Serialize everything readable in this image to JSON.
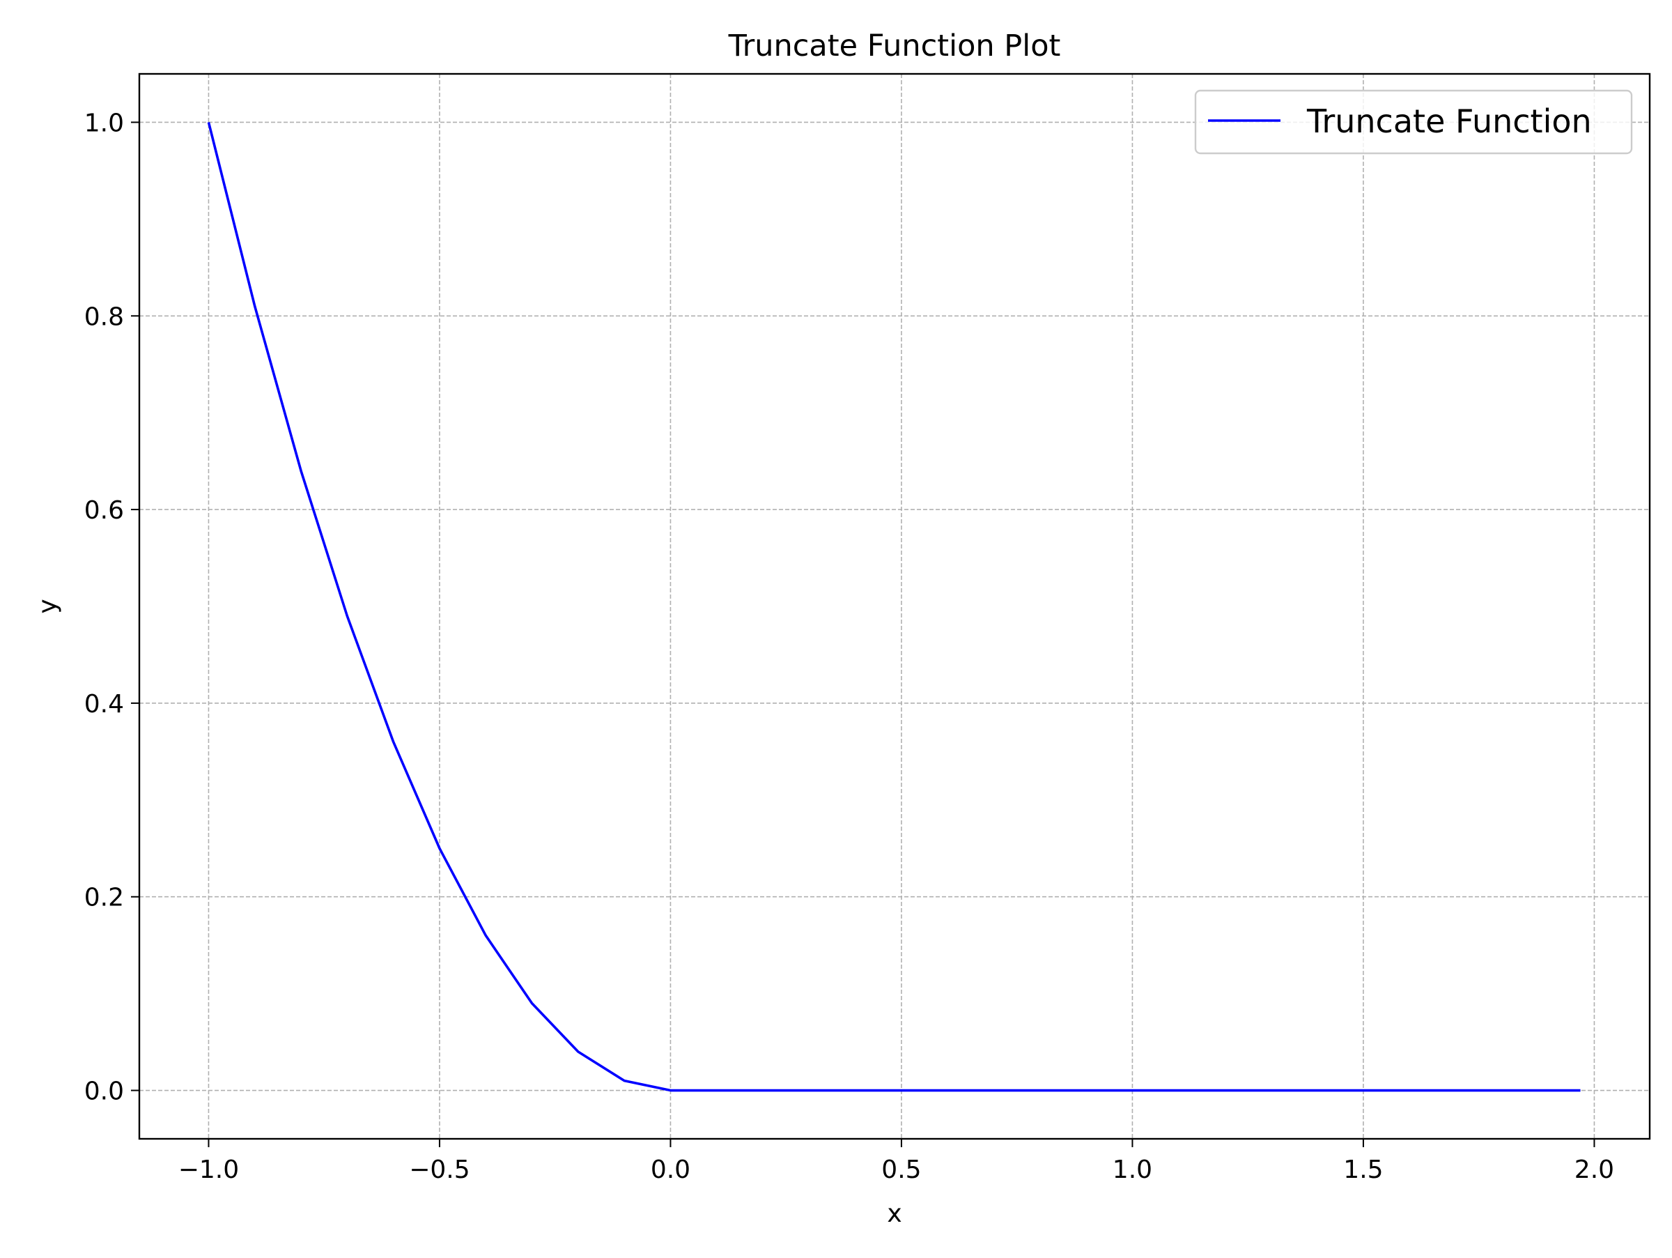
{
  "chart_data": {
    "type": "line",
    "title": "Truncate Function Plot",
    "xlabel": "x",
    "ylabel": "y",
    "xlim": [
      -1.15,
      2.12
    ],
    "ylim": [
      -0.05,
      1.05
    ],
    "xticks": [
      -1.0,
      -0.5,
      0.0,
      0.5,
      1.0,
      1.5,
      2.0
    ],
    "xtick_labels": [
      "−1.0",
      "−0.5",
      "0.0",
      "0.5",
      "1.0",
      "1.5",
      "2.0"
    ],
    "yticks": [
      0.0,
      0.2,
      0.4,
      0.6,
      0.8,
      1.0
    ],
    "ytick_labels": [
      "0.0",
      "0.2",
      "0.4",
      "0.6",
      "0.8",
      "1.0"
    ],
    "grid": true,
    "legend_position": "upper right",
    "series": [
      {
        "name": "Truncate Function",
        "color": "#0000ff",
        "x": [
          -1.0,
          -0.9,
          -0.8,
          -0.7,
          -0.6,
          -0.5,
          -0.4,
          -0.3,
          -0.2,
          -0.1,
          0.0,
          0.5,
          1.0,
          1.5,
          1.97
        ],
        "y": [
          1.0,
          0.81,
          0.64,
          0.49,
          0.36,
          0.25,
          0.16,
          0.09,
          0.04,
          0.01,
          0.0,
          0.0,
          0.0,
          0.0,
          0.0
        ]
      }
    ]
  }
}
